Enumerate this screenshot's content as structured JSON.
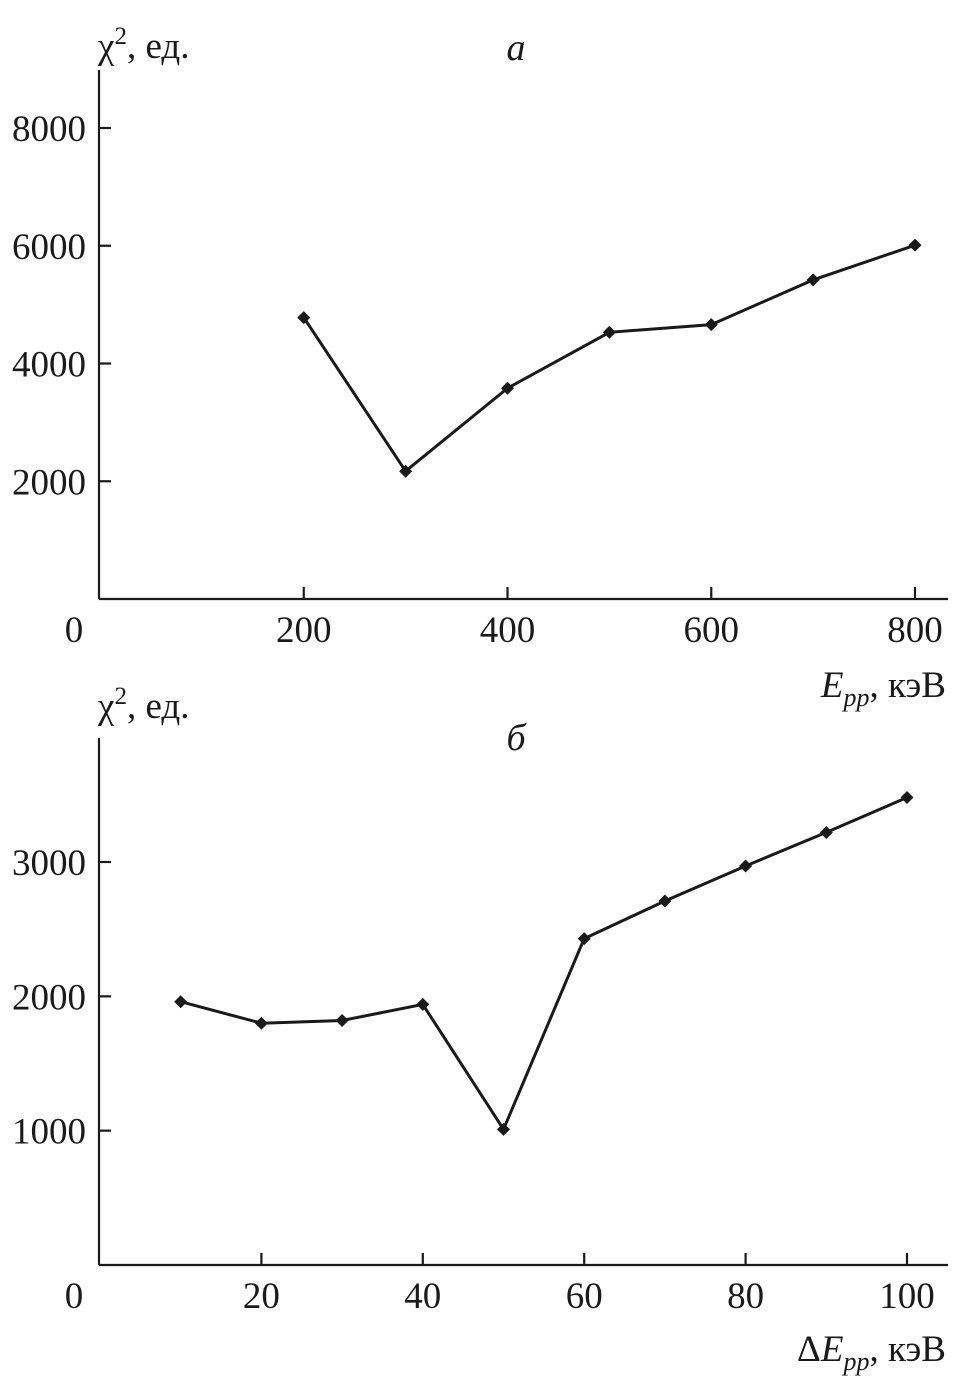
{
  "chart_data": [
    {
      "type": "line",
      "panel_label": "а",
      "ylabel": {
        "symbol": "χ",
        "sup": "2",
        "unit": ", ед."
      },
      "xlabel": {
        "prefix": "",
        "symbol": "E",
        "sub": "pp",
        "unit": ", кэВ"
      },
      "origin_label": "0",
      "xlim": [
        0,
        800
      ],
      "ylim": [
        0,
        8000
      ],
      "xticks": [
        200,
        400,
        600,
        800
      ],
      "yticks": [
        2000,
        4000,
        6000,
        8000
      ],
      "grid": false,
      "marker": "diamond",
      "series": [
        {
          "x": [
            200,
            300,
            400,
            500,
            600,
            700,
            800
          ],
          "values": [
            4780,
            2170,
            3580,
            4530,
            4660,
            5420,
            6010
          ]
        }
      ]
    },
    {
      "type": "line",
      "panel_label": "б",
      "ylabel": {
        "symbol": "χ",
        "sup": "2",
        "unit": ", ед."
      },
      "xlabel": {
        "prefix": "Δ",
        "symbol": "E",
        "sub": "pp",
        "unit": ", кэВ"
      },
      "origin_label": "0",
      "xlim": [
        0,
        100
      ],
      "ylim": [
        0,
        3000
      ],
      "xticks": [
        20,
        40,
        60,
        80,
        100
      ],
      "yticks": [
        1000,
        2000,
        3000
      ],
      "grid": false,
      "marker": "diamond",
      "series": [
        {
          "x": [
            10,
            20,
            30,
            40,
            50,
            60,
            70,
            80,
            90,
            100
          ],
          "values": [
            1960,
            1800,
            1820,
            1940,
            1010,
            2430,
            2710,
            2970,
            3220,
            3480
          ]
        }
      ]
    }
  ]
}
